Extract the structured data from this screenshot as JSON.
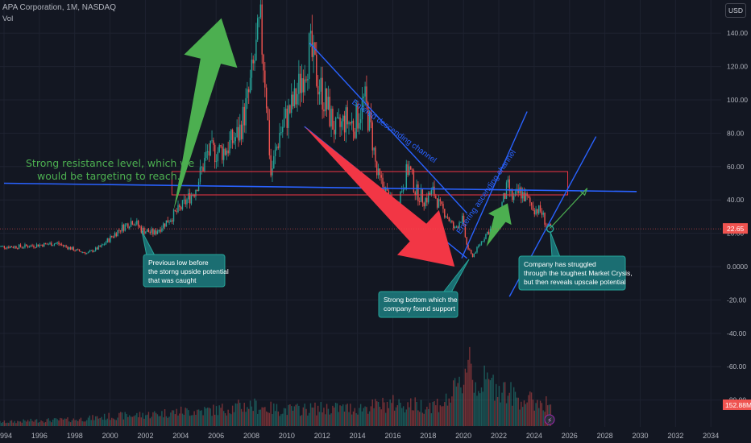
{
  "header": {
    "title": "APA Corporation, 1M, NASDAQ",
    "indicator": "Vol",
    "currency": "USD"
  },
  "colors": {
    "background": "#131722",
    "grid": "#1e2230",
    "axis_text": "#b2b5be",
    "up": "#26a69a",
    "down": "#ef5350",
    "channel": "#2962ff",
    "arrow_green": "#4caf50",
    "arrow_red": "#f23645",
    "box": "#f23645",
    "callout_fill": "#1b6e72",
    "callout_border": "#26a69a",
    "resistance_text": "#4caf50"
  },
  "chart_data": {
    "type": "candlestick",
    "title": "",
    "x_ticks": [
      "1994",
      "1996",
      "1998",
      "2000",
      "2002",
      "2004",
      "2006",
      "2008",
      "2010",
      "2012",
      "2014",
      "2016",
      "2018",
      "2020",
      "2022",
      "2024",
      "2026",
      "2028",
      "2030",
      "2032",
      "2034"
    ],
    "y_ticks": [
      "140.00",
      "120.00",
      "100.00",
      "80.00",
      "60.00",
      "40.00",
      "20.00",
      "0.0000",
      "-20.00",
      "-40.00",
      "-60.00",
      "-80.00"
    ],
    "y_range": [
      -102,
      155
    ],
    "last_price": {
      "label": "22.65",
      "value": 22.65,
      "date": 2024.9
    },
    "volume_label": "152.88M",
    "price_path": [
      [
        1993.6,
        12
      ],
      [
        1995,
        12
      ],
      [
        1996,
        13
      ],
      [
        1997,
        14
      ],
      [
        1998,
        10
      ],
      [
        1998.7,
        8
      ],
      [
        1999.5,
        12
      ],
      [
        2000.5,
        22
      ],
      [
        2001.3,
        28
      ],
      [
        2001.8,
        22
      ],
      [
        2002.5,
        20
      ],
      [
        2003,
        25
      ],
      [
        2004,
        35
      ],
      [
        2004.8,
        46
      ],
      [
        2005.5,
        68
      ],
      [
        2006.5,
        70
      ],
      [
        2007.3,
        80
      ],
      [
        2007.8,
        100
      ],
      [
        2008.2,
        125
      ],
      [
        2008.5,
        145
      ],
      [
        2008.8,
        110
      ],
      [
        2009.1,
        55
      ],
      [
        2009.6,
        80
      ],
      [
        2010,
        90
      ],
      [
        2010.5,
        100
      ],
      [
        2011,
        120
      ],
      [
        2011.3,
        130
      ],
      [
        2011.8,
        110
      ],
      [
        2012.3,
        95
      ],
      [
        2012.8,
        80
      ],
      [
        2013.3,
        88
      ],
      [
        2013.8,
        85
      ],
      [
        2014.4,
        100
      ],
      [
        2014.8,
        80
      ],
      [
        2015.1,
        55
      ],
      [
        2015.6,
        45
      ],
      [
        2016.1,
        32
      ],
      [
        2016.6,
        50
      ],
      [
        2016.9,
        60
      ],
      [
        2017.3,
        45
      ],
      [
        2017.8,
        40
      ],
      [
        2018.3,
        45
      ],
      [
        2018.7,
        35
      ],
      [
        2019,
        32
      ],
      [
        2019.5,
        22
      ],
      [
        2019.9,
        30
      ],
      [
        2020.2,
        12
      ],
      [
        2020.5,
        6
      ],
      [
        2020.9,
        13
      ],
      [
        2021.3,
        20
      ],
      [
        2021.8,
        25
      ],
      [
        2022.2,
        38
      ],
      [
        2022.5,
        48
      ],
      [
        2022.8,
        40
      ],
      [
        2023.2,
        45
      ],
      [
        2023.6,
        40
      ],
      [
        2024,
        35
      ],
      [
        2024.4,
        33
      ],
      [
        2024.7,
        25
      ],
      [
        2024.9,
        22.65
      ]
    ],
    "volume_path": [
      [
        1994,
        0.05
      ],
      [
        1996,
        0.07
      ],
      [
        1998,
        0.08
      ],
      [
        2000,
        0.12
      ],
      [
        2002,
        0.14
      ],
      [
        2004,
        0.18
      ],
      [
        2006,
        0.2
      ],
      [
        2008,
        0.26
      ],
      [
        2009,
        0.22
      ],
      [
        2010,
        0.2
      ],
      [
        2012,
        0.22
      ],
      [
        2014,
        0.22
      ],
      [
        2016,
        0.28
      ],
      [
        2018,
        0.25
      ],
      [
        2019,
        0.3
      ],
      [
        2020,
        0.55
      ],
      [
        2020.3,
        1.0
      ],
      [
        2020.6,
        0.5
      ],
      [
        2021,
        0.55
      ],
      [
        2022,
        0.5
      ],
      [
        2023,
        0.35
      ],
      [
        2024,
        0.3
      ],
      [
        2024.9,
        0.28
      ]
    ],
    "channels": [
      {
        "name": "descending-channel-upper",
        "points": [
          [
            2011.3,
            134
          ],
          [
            2020.2,
            32
          ]
        ]
      },
      {
        "name": "descending-channel-lower",
        "points": [
          [
            2011,
            84
          ],
          [
            2020.2,
            5
          ]
        ]
      },
      {
        "name": "ascending-channel-upper",
        "points": [
          [
            2019.9,
            5
          ],
          [
            2023.6,
            93
          ]
        ]
      },
      {
        "name": "ascending-channel-lower",
        "points": [
          [
            2022.6,
            -18
          ],
          [
            2027.5,
            78
          ]
        ]
      }
    ],
    "resistance_line": [
      [
        1994,
        50
      ],
      [
        2029.8,
        45
      ]
    ],
    "resistance_box": [
      [
        2003.5,
        57
      ],
      [
        2025.9,
        43
      ]
    ],
    "green_arrows": [
      {
        "tail": [
          2003.6,
          34
        ],
        "head": [
          2006.3,
          149
        ]
      },
      {
        "tail": [
          2021.3,
          12
        ],
        "head": [
          2022.5,
          38
        ]
      }
    ],
    "red_arrow": {
      "tail": [
        2011,
        84
      ],
      "head": [
        2019.5,
        0
      ]
    },
    "projection_arrow": {
      "tail": [
        2024.9,
        23
      ],
      "head": [
        2027,
        47
      ]
    },
    "channel_labels": [
      {
        "text": "Entered descending channel",
        "at": [
          2016,
          80
        ],
        "rotate": 36
      },
      {
        "text": "Entering ascending channel",
        "at": [
          2021.4,
          44
        ],
        "rotate": -56
      }
    ],
    "annotations": {
      "resistance": [
        "Strong resistance level, which we",
        "would be targeting to reach."
      ],
      "previous_low": [
        "Previous low before",
        "the storng upside potential",
        "that was caught"
      ],
      "strong_bottom": [
        "Strong bottom which the",
        "company found support"
      ],
      "struggled": [
        "Company has struggled",
        "through the toughest Market Crysis,",
        "but then reveals upscale potential"
      ]
    }
  }
}
